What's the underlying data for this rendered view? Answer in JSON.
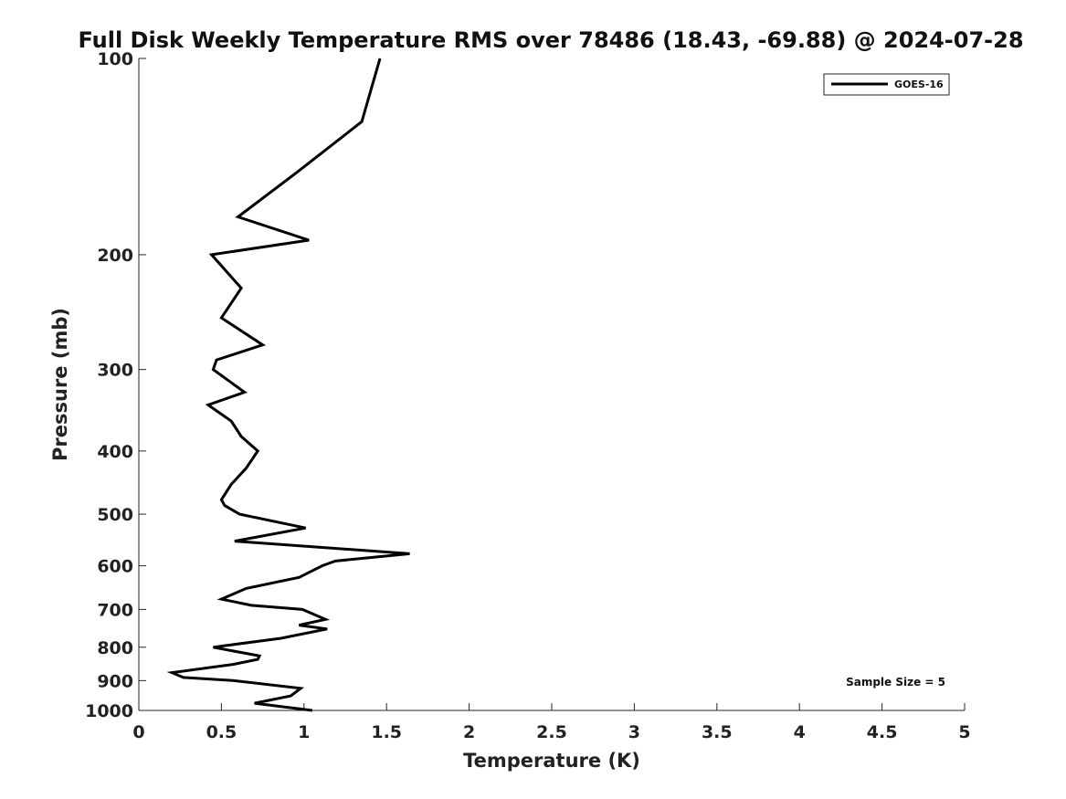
{
  "chart_data": {
    "type": "line",
    "title": "Full Disk Weekly Temperature RMS over 78486 (18.43, -69.88) @ 2024-07-28",
    "xlabel": "Temperature (K)",
    "ylabel": "Pressure (mb)",
    "xlim": [
      0,
      5
    ],
    "ylim": [
      100,
      1000
    ],
    "y_scale": "log",
    "y_reversed": true,
    "grid": false,
    "legend_position": "top-right",
    "x_ticks": [
      "0",
      "0.5",
      "1",
      "1.5",
      "2",
      "2.5",
      "3",
      "3.5",
      "4",
      "4.5",
      "5"
    ],
    "y_ticks": [
      "100",
      "200",
      "300",
      "400",
      "500",
      "600",
      "700",
      "800",
      "900",
      "1000"
    ],
    "annotation": "Sample Size = 5",
    "series": [
      {
        "name": "GOES-16",
        "color": "#000000",
        "points": [
          [
            1.46,
            100
          ],
          [
            1.35,
            125
          ],
          [
            0.95,
            150
          ],
          [
            0.6,
            175
          ],
          [
            1.03,
            190
          ],
          [
            0.44,
            200
          ],
          [
            0.62,
            225
          ],
          [
            0.5,
            250
          ],
          [
            0.75,
            275
          ],
          [
            0.47,
            290
          ],
          [
            0.45,
            300
          ],
          [
            0.64,
            325
          ],
          [
            0.42,
            340
          ],
          [
            0.56,
            360
          ],
          [
            0.62,
            380
          ],
          [
            0.72,
            400
          ],
          [
            0.65,
            425
          ],
          [
            0.56,
            450
          ],
          [
            0.5,
            475
          ],
          [
            0.52,
            485
          ],
          [
            0.61,
            500
          ],
          [
            1.01,
            525
          ],
          [
            0.58,
            550
          ],
          [
            1.64,
            575
          ],
          [
            1.19,
            590
          ],
          [
            1.11,
            600
          ],
          [
            0.97,
            625
          ],
          [
            0.65,
            650
          ],
          [
            0.5,
            675
          ],
          [
            0.68,
            690
          ],
          [
            0.99,
            700
          ],
          [
            1.13,
            725
          ],
          [
            0.97,
            740
          ],
          [
            1.14,
            750
          ],
          [
            0.86,
            775
          ],
          [
            0.45,
            800
          ],
          [
            0.73,
            825
          ],
          [
            0.72,
            835
          ],
          [
            0.57,
            850
          ],
          [
            0.2,
            875
          ],
          [
            0.27,
            890
          ],
          [
            0.57,
            900
          ],
          [
            0.98,
            925
          ],
          [
            0.92,
            950
          ],
          [
            0.7,
            975
          ],
          [
            1.05,
            1000
          ]
        ]
      }
    ]
  }
}
